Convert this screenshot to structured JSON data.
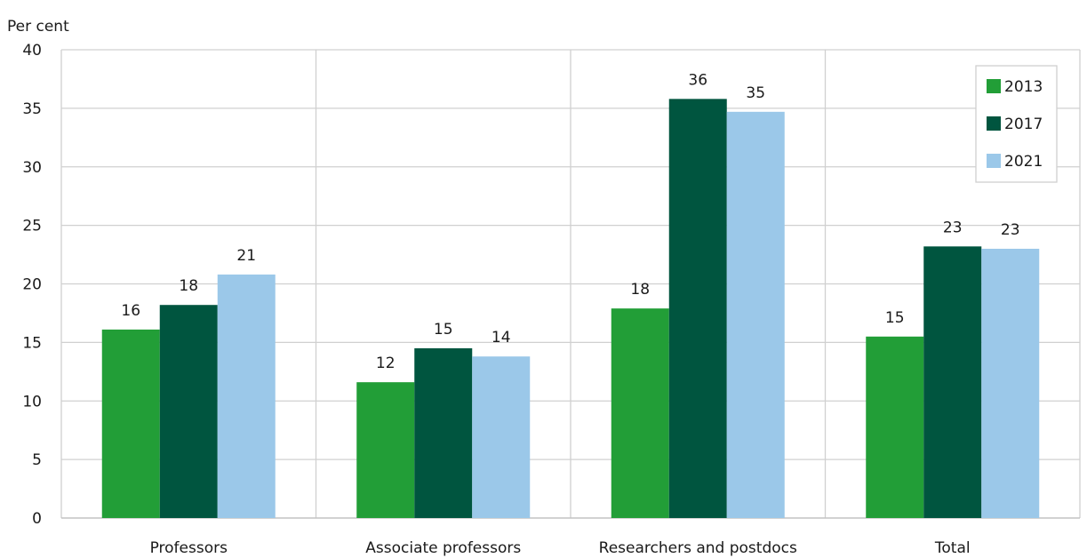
{
  "chart_data": {
    "type": "bar",
    "ylabel": "Per cent",
    "ylim": [
      0,
      40
    ],
    "yticks": [
      0,
      5,
      10,
      15,
      20,
      25,
      30,
      35,
      40
    ],
    "categories": [
      "Professors",
      "Associate professors",
      "Researchers and postdocs",
      "Total"
    ],
    "series": [
      {
        "name": "2013",
        "color": "#229e37",
        "values": [
          16.1,
          11.6,
          17.9,
          15.5
        ],
        "labels": [
          "16",
          "12",
          "18",
          "15"
        ]
      },
      {
        "name": "2017",
        "color": "#00553f",
        "values": [
          18.2,
          14.5,
          35.8,
          23.2
        ],
        "labels": [
          "18",
          "15",
          "36",
          "23"
        ]
      },
      {
        "name": "2021",
        "color": "#9bc8e9",
        "values": [
          20.8,
          13.8,
          34.7,
          23.0
        ],
        "labels": [
          "21",
          "14",
          "35",
          "23"
        ]
      }
    ],
    "grid": true,
    "legend_position": "top-right"
  }
}
